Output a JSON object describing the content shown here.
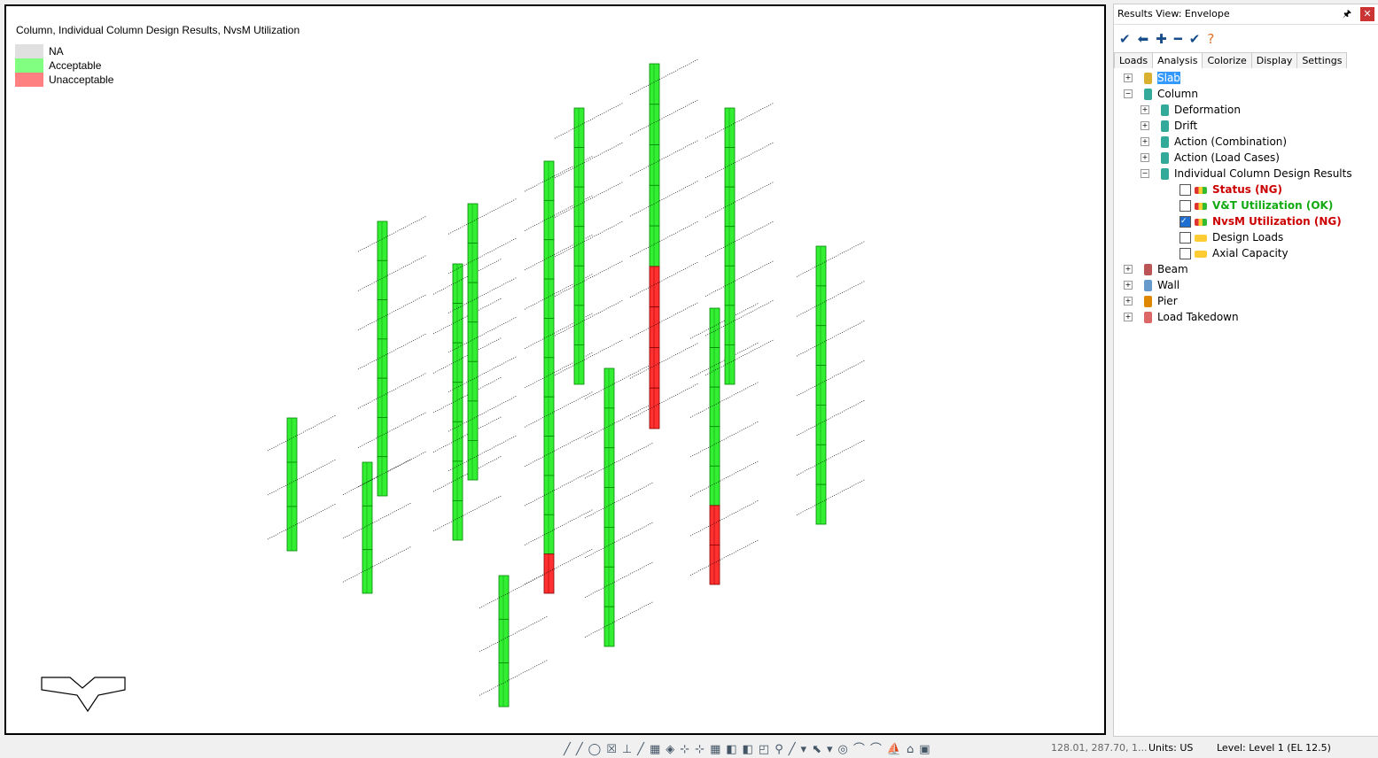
{
  "view": {
    "title": "Column, Individual Column Design Results, NvsM Utilization",
    "legend": [
      "NA",
      "Acceptable",
      "Unacceptable"
    ]
  },
  "panel": {
    "title": "Results View: Envelope",
    "tabs": [
      "Loads",
      "Analysis",
      "Colorize",
      "Display",
      "Settings"
    ],
    "tree": [
      "Slab",
      "Column",
      "Deformation",
      "Drift",
      "Action (Combination)",
      "Action (Load Cases)",
      "Individual Column Design Results",
      "Status (NG)",
      "V&T Utilization (OK)",
      "NvsM Utilization (NG)",
      "Design Loads",
      "Axial Capacity",
      "Beam",
      "Wall",
      "Pier",
      "Load Takedown"
    ]
  },
  "status": {
    "coords": "128.01, 287.70, 1...",
    "units": "Units: US",
    "level": "Level: Level 1 (EL 12.5)"
  }
}
